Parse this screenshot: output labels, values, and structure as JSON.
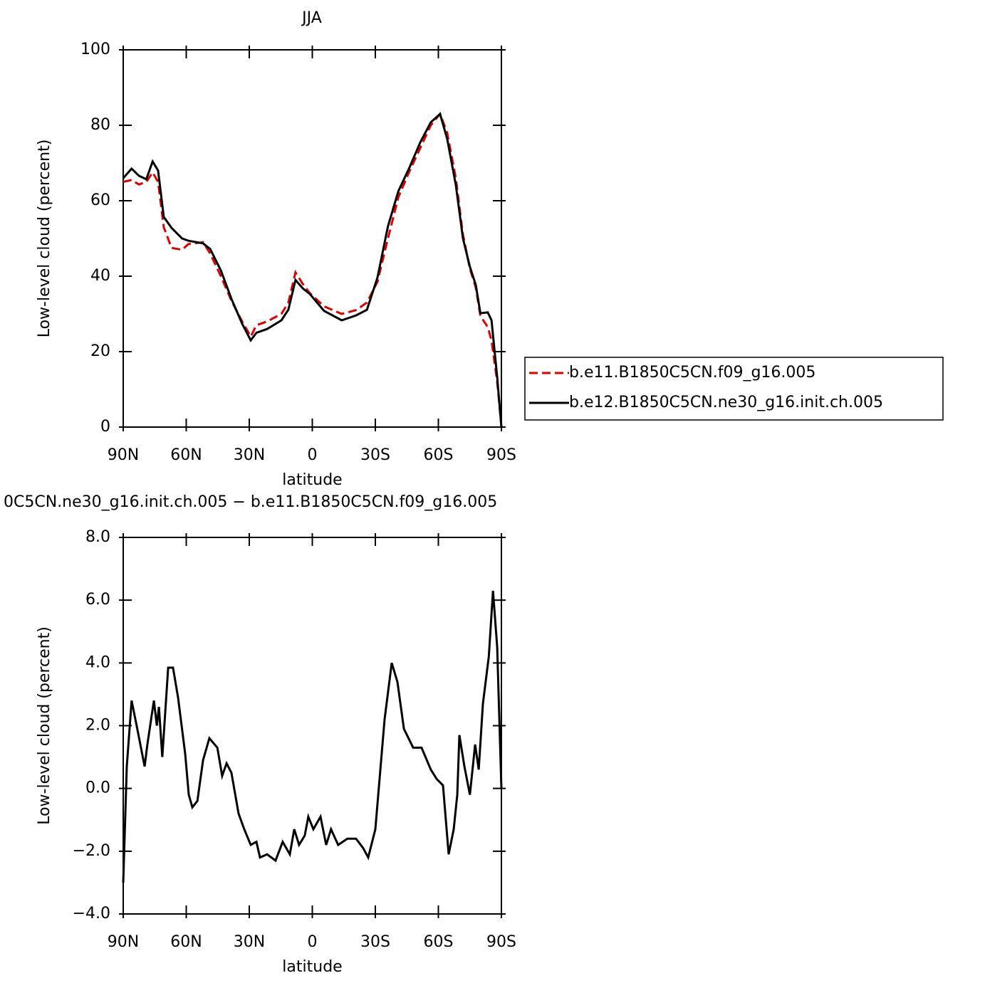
{
  "chart_data": [
    {
      "type": "line",
      "title": "JJA",
      "xlabel": "latitude",
      "ylabel": "Low-level cloud (percent)",
      "xlim": [
        90,
        -90
      ],
      "xticks": [
        {
          "value": 90,
          "label": "90N"
        },
        {
          "value": 60,
          "label": "60N"
        },
        {
          "value": 30,
          "label": "30N"
        },
        0,
        {
          "value": -30,
          "label": "30S"
        },
        {
          "value": -60,
          "label": "60S"
        },
        {
          "value": -90,
          "label": "90S"
        }
      ],
      "ylim": [
        0,
        100
      ],
      "yticks": [
        0,
        20,
        40,
        60,
        80,
        100
      ],
      "legend": "right",
      "x": [
        90,
        86,
        82.5,
        79,
        76,
        73.4,
        70.7,
        67,
        62,
        59,
        52,
        48.6,
        43.5,
        38.5,
        33.4,
        29.3,
        26.6,
        21.5,
        14.7,
        11.4,
        8,
        4.6,
        1.2,
        -5.6,
        -14,
        -20.8,
        -26,
        -31,
        -36,
        -41,
        -46,
        -51.4,
        -56.4,
        -60.8,
        -64.2,
        -68.3,
        -71.7,
        -75,
        -77.8,
        -80,
        -83.5,
        -85.3,
        -88,
        -90
      ],
      "series": [
        {
          "name": "b.e11.B1850C5CN.f09_g16.005",
          "color": "#e00000",
          "dash": "dashed",
          "values": [
            65,
            65.5,
            64.3,
            65,
            67.5,
            65,
            53,
            47.5,
            47,
            48.5,
            49,
            46,
            40,
            33.5,
            28,
            24,
            27,
            28,
            30,
            33,
            41,
            38,
            35.5,
            32,
            30,
            31,
            33,
            38.5,
            50,
            61,
            67.5,
            74,
            80,
            83,
            78,
            66,
            51,
            42,
            37,
            29.5,
            26.5,
            23,
            12,
            0
          ]
        },
        {
          "name": "b.e12.B1850C5CN.ne30_g16.init.ch.005",
          "color": "#000000",
          "dash": "solid",
          "values": [
            66,
            68.5,
            66.6,
            65.7,
            70.4,
            68,
            55.7,
            52.8,
            50,
            49.4,
            48.7,
            47.2,
            41.5,
            34,
            27.4,
            23,
            25,
            26,
            28.3,
            31.1,
            39,
            36.8,
            35.3,
            30.8,
            28.3,
            29.6,
            31.1,
            39.6,
            53.2,
            62.6,
            68.5,
            75.5,
            80.8,
            83,
            76.4,
            64.2,
            50,
            42.5,
            37.7,
            30.2,
            30.4,
            28.3,
            13.2,
            0
          ]
        }
      ]
    },
    {
      "type": "line",
      "title": "0C5CN.ne30_g16.init.ch.005 − b.e11.B1850C5CN.f09_g16.005",
      "xlabel": "latitude",
      "ylabel": "Low-level cloud (percent)",
      "xlim": [
        90,
        -90
      ],
      "xticks": [
        {
          "value": 90,
          "label": "90N"
        },
        {
          "value": 60,
          "label": "60N"
        },
        {
          "value": 30,
          "label": "30N"
        },
        0,
        {
          "value": -30,
          "label": "30S"
        },
        {
          "value": -60,
          "label": "60S"
        },
        {
          "value": -90,
          "label": "90S"
        }
      ],
      "ylim": [
        -4,
        8
      ],
      "yticks": [
        {
          "value": -4,
          "label": "−4.0"
        },
        {
          "value": -2,
          "label": "−2.0"
        },
        {
          "value": 0,
          "label": "0.0"
        },
        {
          "value": 2,
          "label": "2.0"
        },
        {
          "value": 4,
          "label": "4.0"
        },
        {
          "value": 6,
          "label": "6.0"
        },
        {
          "value": 8,
          "label": "8.0"
        }
      ],
      "x": [
        90,
        88.3,
        86,
        83.6,
        79.8,
        78.5,
        75.4,
        74,
        73,
        71.4,
        68.6,
        66.3,
        63.9,
        60.5,
        58.8,
        57.1,
        54.7,
        52,
        49,
        45.2,
        42.9,
        40.8,
        38.5,
        35.1,
        32.4,
        29.3,
        26.6,
        24.9,
        21.5,
        17.5,
        14.1,
        10.7,
        8.6,
        6.3,
        3.6,
        1.9,
        -0.5,
        -3.9,
        -6.6,
        -8.9,
        -12.3,
        -16.7,
        -20.8,
        -24.2,
        -26.6,
        -30,
        -34.4,
        -37.8,
        -40.5,
        -43.6,
        -48,
        -52,
        -56.4,
        -59.2,
        -62.2,
        -64.9,
        -67.3,
        -69,
        -70,
        -72.4,
        -75,
        -77.5,
        -79.2,
        -81.2,
        -84,
        -86,
        -88,
        -90
      ],
      "series": [
        {
          "color": "#000000",
          "dash": "solid",
          "values": [
            -3,
            0.7,
            2.8,
            2,
            0.7,
            1.4,
            2.8,
            2,
            2.6,
            1,
            3.85,
            3.85,
            2.9,
            1.1,
            -0.2,
            -0.6,
            -0.4,
            0.9,
            1.6,
            1.3,
            0.4,
            0.8,
            0.5,
            -0.8,
            -1.3,
            -1.8,
            -1.7,
            -2.2,
            -2.1,
            -2.3,
            -1.7,
            -2.1,
            -1.3,
            -1.8,
            -1.5,
            -0.9,
            -1.3,
            -0.9,
            -1.8,
            -1.3,
            -1.8,
            -1.6,
            -1.6,
            -1.9,
            -2.2,
            -1.3,
            2.2,
            4,
            3.4,
            1.9,
            1.3,
            1.3,
            0.6,
            0.3,
            0.1,
            -2.1,
            -1.3,
            -0.2,
            1.7,
            0.7,
            -0.2,
            1.4,
            0.6,
            2.7,
            4.2,
            6.3,
            4.5,
            0
          ]
        }
      ]
    }
  ]
}
